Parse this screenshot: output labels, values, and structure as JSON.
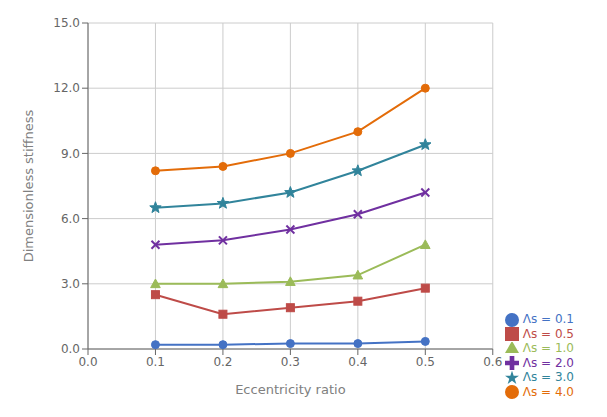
{
  "chart_data": {
    "type": "line",
    "x": [
      0.1,
      0.2,
      0.3,
      0.4,
      0.5
    ],
    "series": [
      {
        "name": "Λs = 0.1",
        "color": "#4472C4",
        "marker": "circle",
        "values": [
          0.2,
          0.2,
          0.25,
          0.25,
          0.35
        ]
      },
      {
        "name": "Λs = 0.5",
        "color": "#BE4B48",
        "marker": "square",
        "values": [
          2.5,
          1.6,
          1.9,
          2.2,
          2.8
        ]
      },
      {
        "name": "Λs = 1.0",
        "color": "#9BBB59",
        "marker": "triangle",
        "values": [
          3.0,
          3.0,
          3.1,
          3.4,
          4.8
        ]
      },
      {
        "name": "Λs = 2.0",
        "color": "#7030A0",
        "marker": "x",
        "values": [
          4.8,
          5.0,
          5.5,
          6.2,
          7.2
        ]
      },
      {
        "name": "Λs = 3.0",
        "color": "#31849B",
        "marker": "star",
        "values": [
          6.5,
          6.7,
          7.2,
          8.2,
          9.4
        ]
      },
      {
        "name": "Λs = 4.0",
        "color": "#E36C09",
        "marker": "circle",
        "values": [
          8.2,
          8.4,
          9.0,
          10.0,
          12.0
        ]
      }
    ],
    "xlabel": "Eccentricity ratio",
    "ylabel": "Dimensionless stiffness",
    "xlim": [
      0.0,
      0.6
    ],
    "ylim": [
      0.0,
      15.0
    ],
    "xticks": [
      {
        "value": 0.0,
        "label": "0.0"
      },
      0.1,
      0.2,
      0.3,
      0.4,
      0.5,
      0.6
    ],
    "yticks": [
      {
        "value": 0.0,
        "label": "0.0"
      },
      {
        "value": 3.0,
        "label": "3.0"
      },
      {
        "value": 6.0,
        "label": "6.0"
      },
      {
        "value": 9.0,
        "label": "9.0"
      },
      {
        "value": 12.0,
        "label": "12.0"
      },
      {
        "value": 15.0,
        "label": "15.0"
      }
    ],
    "grid": true,
    "legend": "lower right"
  }
}
